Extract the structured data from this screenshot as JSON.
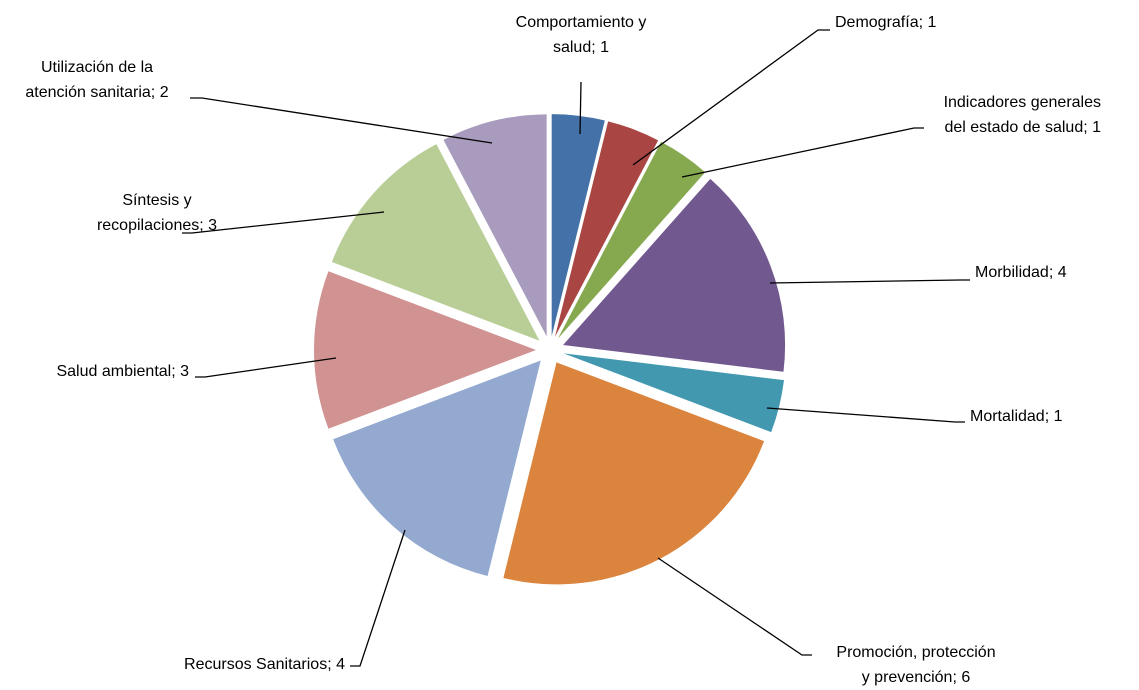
{
  "chart_data": {
    "type": "pie",
    "exploded": true,
    "legend": "none",
    "data_labels": "category; value",
    "slices": [
      {
        "name": "Comportamiento y salud",
        "value": 1,
        "color": "#4472A8",
        "label_lines": [
          "Comportamiento y",
          "salud; 1"
        ]
      },
      {
        "name": "Demografía",
        "value": 1,
        "color": "#A94644",
        "label_lines": [
          "Demografía; 1"
        ]
      },
      {
        "name": "Indicadores generales del estado de salud",
        "value": 1,
        "color": "#86A94F",
        "label_lines": [
          "Indicadores generales",
          "del estado de salud; 1"
        ]
      },
      {
        "name": "Morbilidad",
        "value": 4,
        "color": "#71588F",
        "label_lines": [
          "Morbilidad; 4"
        ]
      },
      {
        "name": "Mortalidad",
        "value": 1,
        "color": "#4198AF",
        "label_lines": [
          "Mortalidad; 1"
        ]
      },
      {
        "name": "Promoción, protección y prevención",
        "value": 6,
        "color": "#DB843D",
        "label_lines": [
          "Promoción, protección",
          "y prevención; 6"
        ]
      },
      {
        "name": "Recursos Sanitarios",
        "value": 4,
        "color": "#93A9CF",
        "label_lines": [
          "Recursos Sanitarios; 4"
        ]
      },
      {
        "name": "Salud ambiental",
        "value": 3,
        "color": "#D19392",
        "label_lines": [
          "Salud ambiental; 3"
        ]
      },
      {
        "name": "Síntesis y recopilaciones",
        "value": 3,
        "color": "#B9CD96",
        "label_lines": [
          "Síntesis y",
          "recopilaciones; 3"
        ]
      },
      {
        "name": "Utilización de la atención sanitaria",
        "value": 2,
        "color": "#A99BBD",
        "label_lines": [
          "Utilización de la",
          "atención sanitaria; 2"
        ]
      }
    ]
  }
}
